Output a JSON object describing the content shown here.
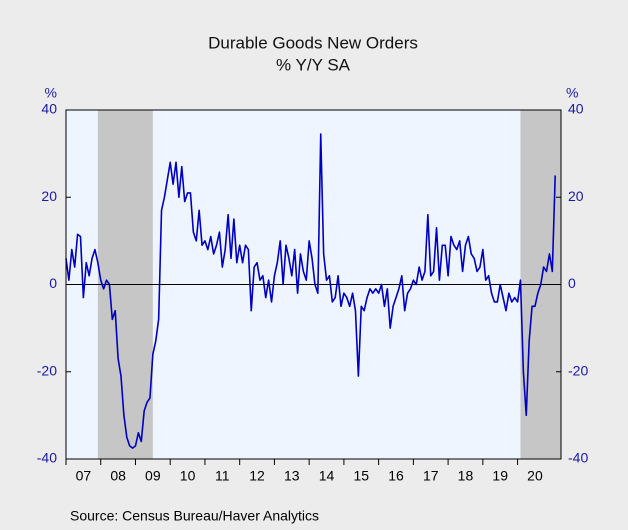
{
  "chart_data": {
    "type": "line",
    "title": "Durable Goods New Orders",
    "subtitle": "% Y/Y   SA",
    "y_unit": "%",
    "y2_unit": "%",
    "source": "Source:  Census Bureau/Haver Analytics",
    "xlim": [
      2007,
      2021.25
    ],
    "xticks": [
      {
        "value": 2007.5,
        "label": "07"
      },
      {
        "value": 2008.5,
        "label": "08"
      },
      {
        "value": 2009.5,
        "label": "09"
      },
      {
        "value": 2010.5,
        "label": "10"
      },
      {
        "value": 2011.5,
        "label": "11"
      },
      {
        "value": 2012.5,
        "label": "12"
      },
      {
        "value": 2013.5,
        "label": "13"
      },
      {
        "value": 2014.5,
        "label": "14"
      },
      {
        "value": 2015.5,
        "label": "15"
      },
      {
        "value": 2016.5,
        "label": "16"
      },
      {
        "value": 2017.5,
        "label": "17"
      },
      {
        "value": 2018.5,
        "label": "18"
      },
      {
        "value": 2019.5,
        "label": "19"
      },
      {
        "value": 2020.5,
        "label": "20"
      }
    ],
    "ylim": [
      -40,
      40
    ],
    "yticks": [
      -40,
      -20,
      0,
      20,
      40
    ],
    "y2lim": [
      -40,
      40
    ],
    "y2ticks": [
      -40,
      -20,
      0,
      20,
      40
    ],
    "shading": [
      [
        2007.917,
        2009.5
      ],
      [
        2020.083,
        2021.25
      ]
    ],
    "x": [
      2007,
      2007.083,
      2007.167,
      2007.25,
      2007.333,
      2007.417,
      2007.5,
      2007.583,
      2007.667,
      2007.75,
      2007.833,
      2007.917,
      2008,
      2008.083,
      2008.167,
      2008.25,
      2008.333,
      2008.417,
      2008.5,
      2008.583,
      2008.667,
      2008.75,
      2008.833,
      2008.917,
      2009,
      2009.083,
      2009.167,
      2009.25,
      2009.333,
      2009.417,
      2009.5,
      2009.583,
      2009.667,
      2009.75,
      2009.833,
      2009.917,
      2010,
      2010.083,
      2010.167,
      2010.25,
      2010.333,
      2010.417,
      2010.5,
      2010.583,
      2010.667,
      2010.75,
      2010.833,
      2010.917,
      2011,
      2011.083,
      2011.167,
      2011.25,
      2011.333,
      2011.417,
      2011.5,
      2011.583,
      2011.667,
      2011.75,
      2011.833,
      2011.917,
      2012,
      2012.083,
      2012.167,
      2012.25,
      2012.333,
      2012.417,
      2012.5,
      2012.583,
      2012.667,
      2012.75,
      2012.833,
      2012.917,
      2013,
      2013.083,
      2013.167,
      2013.25,
      2013.333,
      2013.417,
      2013.5,
      2013.583,
      2013.667,
      2013.75,
      2013.833,
      2013.917,
      2014,
      2014.083,
      2014.167,
      2014.25,
      2014.333,
      2014.417,
      2014.5,
      2014.583,
      2014.667,
      2014.75,
      2014.833,
      2014.917,
      2015,
      2015.083,
      2015.167,
      2015.25,
      2015.333,
      2015.417,
      2015.5,
      2015.583,
      2015.667,
      2015.75,
      2015.833,
      2015.917,
      2016,
      2016.083,
      2016.167,
      2016.25,
      2016.333,
      2016.417,
      2016.5,
      2016.583,
      2016.667,
      2016.75,
      2016.833,
      2016.917,
      2017,
      2017.083,
      2017.167,
      2017.25,
      2017.333,
      2017.417,
      2017.5,
      2017.583,
      2017.667,
      2017.75,
      2017.833,
      2017.917,
      2018,
      2018.083,
      2018.167,
      2018.25,
      2018.333,
      2018.417,
      2018.5,
      2018.583,
      2018.667,
      2018.75,
      2018.833,
      2018.917,
      2019,
      2019.083,
      2019.167,
      2019.25,
      2019.333,
      2019.417,
      2019.5,
      2019.583,
      2019.667,
      2019.75,
      2019.833,
      2019.917,
      2020,
      2020.083,
      2020.167,
      2020.25,
      2020.333,
      2020.417,
      2020.5,
      2020.583,
      2020.667,
      2020.75,
      2020.833,
      2020.917,
      2021,
      2021.083
    ],
    "series": [
      {
        "color": "#0000c0",
        "values": [
          6,
          1,
          8,
          4,
          11.5,
          11,
          -3,
          5,
          2,
          6,
          8,
          5,
          1,
          -1,
          1,
          0,
          -8,
          -6,
          -17,
          -21,
          -30,
          -35,
          -37,
          -37.5,
          -37,
          -34,
          -36,
          -29,
          -27,
          -26,
          -16,
          -13,
          -8,
          17,
          20,
          24,
          28,
          23,
          28,
          20,
          27,
          19,
          21,
          21,
          12,
          10,
          17,
          9,
          10,
          8,
          11,
          7,
          9,
          12,
          4,
          8,
          16,
          6,
          15,
          5,
          9,
          5,
          9,
          8,
          -6,
          4,
          5,
          1,
          2,
          -3,
          1,
          -4,
          2,
          5,
          10,
          0,
          9,
          6,
          2,
          8,
          -2,
          7,
          3,
          1,
          10,
          6,
          0,
          -2,
          34.5,
          7,
          1,
          2,
          -4,
          -3,
          2,
          -5,
          -2,
          -3,
          -5,
          -2,
          -6,
          -21,
          -5,
          -6,
          -3,
          -1,
          -2,
          -1,
          -2,
          0,
          -5,
          -1,
          -10,
          -5,
          -3,
          -1,
          2,
          -6,
          -2,
          -1,
          1,
          0,
          4,
          1,
          3,
          16,
          2,
          3,
          13,
          1,
          9,
          9,
          2,
          11,
          9,
          8,
          10,
          3,
          9,
          11,
          7,
          6,
          3,
          4,
          8,
          1,
          2,
          -2,
          -4,
          -4,
          0,
          -3,
          -6,
          -2,
          -4,
          -3,
          -4,
          1,
          -20,
          -30,
          -13,
          -5,
          -5,
          -2,
          0,
          4,
          3,
          7,
          3,
          25
        ]
      }
    ]
  }
}
